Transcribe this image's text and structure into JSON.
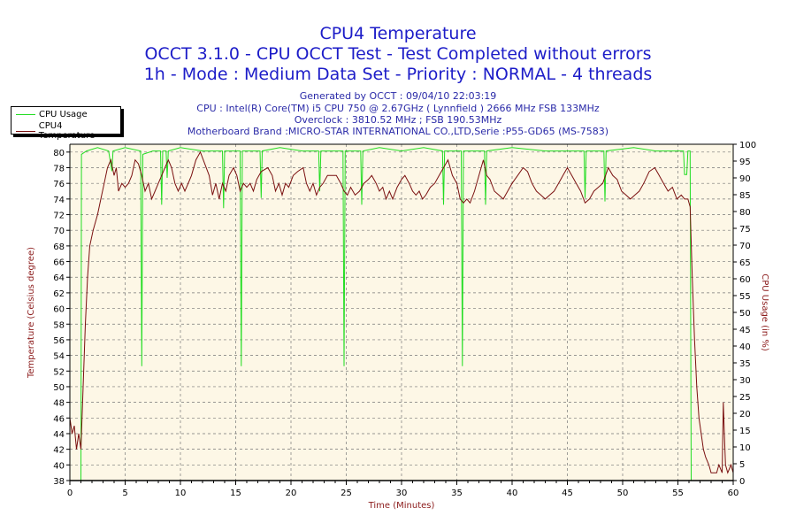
{
  "header": {
    "title": "CPU4 Temperature",
    "subtitle1": "OCCT 3.1.0 - CPU OCCT Test - Test Completed without errors",
    "subtitle2": "1h - Mode : Medium Data Set - Priority : NORMAL - 4 threads",
    "info": [
      "Generated by OCCT : 09/04/10 22:03:19",
      "CPU : Intel(R) Core(TM) i5 CPU 750 @ 2.67GHz ( Lynnfield ) 2666 MHz FSB 133MHz",
      "Overclock : 3810.52 MHz ; FSB 190.53MHz",
      "Motherboard Brand :MICRO-STAR INTERNATIONAL CO.,LTD,Serie :P55-GD65 (MS-7583)"
    ]
  },
  "colors": {
    "title": "#1c1cc8",
    "cpu_usage": "#22dd22",
    "temperature": "#7a1010",
    "plot_bg": "#fdf7e6",
    "axis_label": "#8b1a1a"
  },
  "chart_data": {
    "type": "line",
    "title": "CPU4 Temperature",
    "xlabel": "Time (Minutes)",
    "ylabel": "Temperature (Celsius degree)",
    "y2label": "CPU Usage (in %)",
    "xlim": [
      0,
      60
    ],
    "ylim": [
      38,
      81
    ],
    "y2lim": [
      0,
      100
    ],
    "xticks": [
      0,
      5,
      10,
      15,
      20,
      25,
      30,
      35,
      40,
      45,
      50,
      55,
      60
    ],
    "yticks": [
      38,
      40,
      42,
      44,
      46,
      48,
      50,
      52,
      54,
      56,
      58,
      60,
      62,
      64,
      66,
      68,
      70,
      72,
      74,
      76,
      78,
      80
    ],
    "y2ticks": [
      0,
      5,
      10,
      15,
      20,
      25,
      30,
      35,
      40,
      45,
      50,
      55,
      60,
      65,
      70,
      75,
      80,
      85,
      90,
      95,
      100
    ],
    "grid": true,
    "legend": {
      "position": "top-left",
      "entries": [
        "CPU Usage",
        "CPU4 Temperature"
      ]
    },
    "series": [
      {
        "name": "CPU Usage",
        "axis": "right",
        "points": [
          [
            0,
            0
          ],
          [
            1.0,
            0
          ],
          [
            1.05,
            97
          ],
          [
            1.5,
            98
          ],
          [
            2.5,
            99
          ],
          [
            3.5,
            98
          ],
          [
            3.8,
            92
          ],
          [
            3.9,
            98
          ],
          [
            5,
            99
          ],
          [
            6.4,
            98
          ],
          [
            6.5,
            34
          ],
          [
            6.6,
            97
          ],
          [
            7.5,
            98
          ],
          [
            8.2,
            98
          ],
          [
            8.3,
            82
          ],
          [
            8.4,
            98
          ],
          [
            8.7,
            98
          ],
          [
            8.8,
            90
          ],
          [
            8.9,
            98
          ],
          [
            10,
            99
          ],
          [
            12,
            98
          ],
          [
            13.8,
            98
          ],
          [
            13.9,
            81
          ],
          [
            14.0,
            98
          ],
          [
            15.4,
            98
          ],
          [
            15.5,
            34
          ],
          [
            15.6,
            98
          ],
          [
            17.2,
            98
          ],
          [
            17.3,
            84
          ],
          [
            17.4,
            98
          ],
          [
            19,
            99
          ],
          [
            21,
            98
          ],
          [
            22.5,
            98
          ],
          [
            22.6,
            86
          ],
          [
            22.7,
            98
          ],
          [
            24.7,
            98
          ],
          [
            24.8,
            34
          ],
          [
            24.9,
            98
          ],
          [
            26.3,
            98
          ],
          [
            26.4,
            82
          ],
          [
            26.5,
            98
          ],
          [
            28,
            99
          ],
          [
            30,
            98
          ],
          [
            32,
            99
          ],
          [
            33.7,
            98
          ],
          [
            33.8,
            82
          ],
          [
            33.9,
            98
          ],
          [
            35.4,
            98
          ],
          [
            35.5,
            34
          ],
          [
            35.6,
            98
          ],
          [
            37.5,
            98
          ],
          [
            37.6,
            82
          ],
          [
            37.7,
            98
          ],
          [
            40,
            99
          ],
          [
            43,
            98
          ],
          [
            46.5,
            98
          ],
          [
            46.6,
            84
          ],
          [
            46.7,
            98
          ],
          [
            48.3,
            98
          ],
          [
            48.4,
            83
          ],
          [
            48.5,
            98
          ],
          [
            51,
            99
          ],
          [
            53,
            98
          ],
          [
            55.5,
            98
          ],
          [
            55.6,
            91
          ],
          [
            55.8,
            91
          ],
          [
            55.9,
            98
          ],
          [
            56.1,
            98
          ],
          [
            56.2,
            0
          ],
          [
            60,
            0
          ]
        ]
      },
      {
        "name": "CPU4 Temperature",
        "axis": "left",
        "points": [
          [
            0,
            46
          ],
          [
            0.2,
            44
          ],
          [
            0.4,
            45
          ],
          [
            0.6,
            42
          ],
          [
            0.8,
            44
          ],
          [
            1.0,
            42
          ],
          [
            1.2,
            50
          ],
          [
            1.4,
            58
          ],
          [
            1.6,
            64
          ],
          [
            1.8,
            68
          ],
          [
            2.1,
            70
          ],
          [
            2.5,
            72
          ],
          [
            2.8,
            74
          ],
          [
            3.1,
            76
          ],
          [
            3.4,
            78
          ],
          [
            3.7,
            79
          ],
          [
            4.0,
            77
          ],
          [
            4.2,
            78
          ],
          [
            4.4,
            75
          ],
          [
            4.7,
            76
          ],
          [
            5.0,
            75.5
          ],
          [
            5.3,
            76
          ],
          [
            5.6,
            77
          ],
          [
            5.9,
            79
          ],
          [
            6.2,
            78.5
          ],
          [
            6.5,
            77
          ],
          [
            6.8,
            75
          ],
          [
            7.1,
            76
          ],
          [
            7.4,
            74
          ],
          [
            7.7,
            75
          ],
          [
            8.0,
            76
          ],
          [
            8.3,
            77
          ],
          [
            8.6,
            78
          ],
          [
            8.9,
            79
          ],
          [
            9.2,
            78
          ],
          [
            9.5,
            76
          ],
          [
            9.8,
            75
          ],
          [
            10.1,
            76
          ],
          [
            10.4,
            75
          ],
          [
            10.7,
            76
          ],
          [
            11.0,
            77
          ],
          [
            11.4,
            79
          ],
          [
            11.8,
            80
          ],
          [
            12.2,
            78.5
          ],
          [
            12.6,
            77
          ],
          [
            12.9,
            74.5
          ],
          [
            13.2,
            76
          ],
          [
            13.5,
            74
          ],
          [
            13.8,
            76
          ],
          [
            14.1,
            75
          ],
          [
            14.4,
            77
          ],
          [
            14.8,
            78
          ],
          [
            15.1,
            77
          ],
          [
            15.4,
            75
          ],
          [
            15.7,
            76
          ],
          [
            16.0,
            75.5
          ],
          [
            16.3,
            76
          ],
          [
            16.6,
            75
          ],
          [
            16.9,
            76.5
          ],
          [
            17.3,
            77.5
          ],
          [
            17.9,
            78
          ],
          [
            18.3,
            77
          ],
          [
            18.6,
            75
          ],
          [
            18.9,
            76
          ],
          [
            19.2,
            74.5
          ],
          [
            19.5,
            76
          ],
          [
            19.8,
            75.5
          ],
          [
            20.2,
            77
          ],
          [
            20.6,
            77.5
          ],
          [
            21.1,
            78
          ],
          [
            21.4,
            76
          ],
          [
            21.7,
            75
          ],
          [
            22.0,
            76
          ],
          [
            22.3,
            74.5
          ],
          [
            22.6,
            75.5
          ],
          [
            22.9,
            76
          ],
          [
            23.3,
            77
          ],
          [
            23.7,
            77
          ],
          [
            24.1,
            77
          ],
          [
            24.5,
            76
          ],
          [
            24.8,
            75
          ],
          [
            25.1,
            74.5
          ],
          [
            25.4,
            75.5
          ],
          [
            25.8,
            74.5
          ],
          [
            26.2,
            75
          ],
          [
            26.6,
            76
          ],
          [
            27.0,
            76.5
          ],
          [
            27.3,
            77
          ],
          [
            27.7,
            76
          ],
          [
            28.0,
            75
          ],
          [
            28.3,
            75.5
          ],
          [
            28.6,
            74
          ],
          [
            28.9,
            75
          ],
          [
            29.2,
            74
          ],
          [
            29.6,
            75.5
          ],
          [
            30.0,
            76.5
          ],
          [
            30.3,
            77
          ],
          [
            30.7,
            76
          ],
          [
            31.0,
            75
          ],
          [
            31.3,
            74.5
          ],
          [
            31.6,
            75
          ],
          [
            31.9,
            74
          ],
          [
            32.2,
            74.5
          ],
          [
            32.6,
            75.5
          ],
          [
            33.0,
            76
          ],
          [
            33.4,
            77
          ],
          [
            33.8,
            78
          ],
          [
            34.2,
            79
          ],
          [
            34.6,
            77
          ],
          [
            35.0,
            76
          ],
          [
            35.3,
            74
          ],
          [
            35.6,
            73.5
          ],
          [
            35.9,
            74
          ],
          [
            36.2,
            73.5
          ],
          [
            36.6,
            75
          ],
          [
            37.0,
            77
          ],
          [
            37.4,
            79
          ],
          [
            37.7,
            77
          ],
          [
            38.0,
            76.5
          ],
          [
            38.4,
            75
          ],
          [
            38.8,
            74.5
          ],
          [
            39.2,
            74
          ],
          [
            39.6,
            75
          ],
          [
            40.0,
            76
          ],
          [
            40.5,
            77
          ],
          [
            41.0,
            78
          ],
          [
            41.4,
            77.5
          ],
          [
            41.8,
            76
          ],
          [
            42.2,
            75
          ],
          [
            42.6,
            74.5
          ],
          [
            43.0,
            74
          ],
          [
            43.4,
            74.5
          ],
          [
            43.8,
            75
          ],
          [
            44.2,
            76
          ],
          [
            44.6,
            77
          ],
          [
            45.0,
            78
          ],
          [
            45.4,
            77
          ],
          [
            45.8,
            76
          ],
          [
            46.2,
            75
          ],
          [
            46.6,
            73.5
          ],
          [
            47.0,
            74
          ],
          [
            47.4,
            75
          ],
          [
            47.8,
            75.5
          ],
          [
            48.2,
            76
          ],
          [
            48.7,
            78
          ],
          [
            49.1,
            77
          ],
          [
            49.5,
            76.5
          ],
          [
            49.9,
            75
          ],
          [
            50.3,
            74.5
          ],
          [
            50.7,
            74
          ],
          [
            51.1,
            74.5
          ],
          [
            51.5,
            75
          ],
          [
            51.9,
            76
          ],
          [
            52.4,
            77.5
          ],
          [
            52.9,
            78
          ],
          [
            53.3,
            77
          ],
          [
            53.7,
            76
          ],
          [
            54.1,
            75
          ],
          [
            54.5,
            75.5
          ],
          [
            54.9,
            74
          ],
          [
            55.3,
            74.5
          ],
          [
            55.6,
            74
          ],
          [
            55.9,
            74
          ],
          [
            56.1,
            73
          ],
          [
            56.3,
            64
          ],
          [
            56.5,
            56
          ],
          [
            56.7,
            50
          ],
          [
            56.9,
            46
          ],
          [
            57.1,
            44
          ],
          [
            57.3,
            42
          ],
          [
            57.5,
            41
          ],
          [
            57.8,
            40
          ],
          [
            58.0,
            39
          ],
          [
            58.5,
            39
          ],
          [
            58.7,
            40
          ],
          [
            59.0,
            39
          ],
          [
            59.1,
            48
          ],
          [
            59.2,
            44
          ],
          [
            59.3,
            40
          ],
          [
            59.5,
            39
          ],
          [
            59.8,
            40
          ],
          [
            60.0,
            39
          ]
        ]
      }
    ]
  }
}
